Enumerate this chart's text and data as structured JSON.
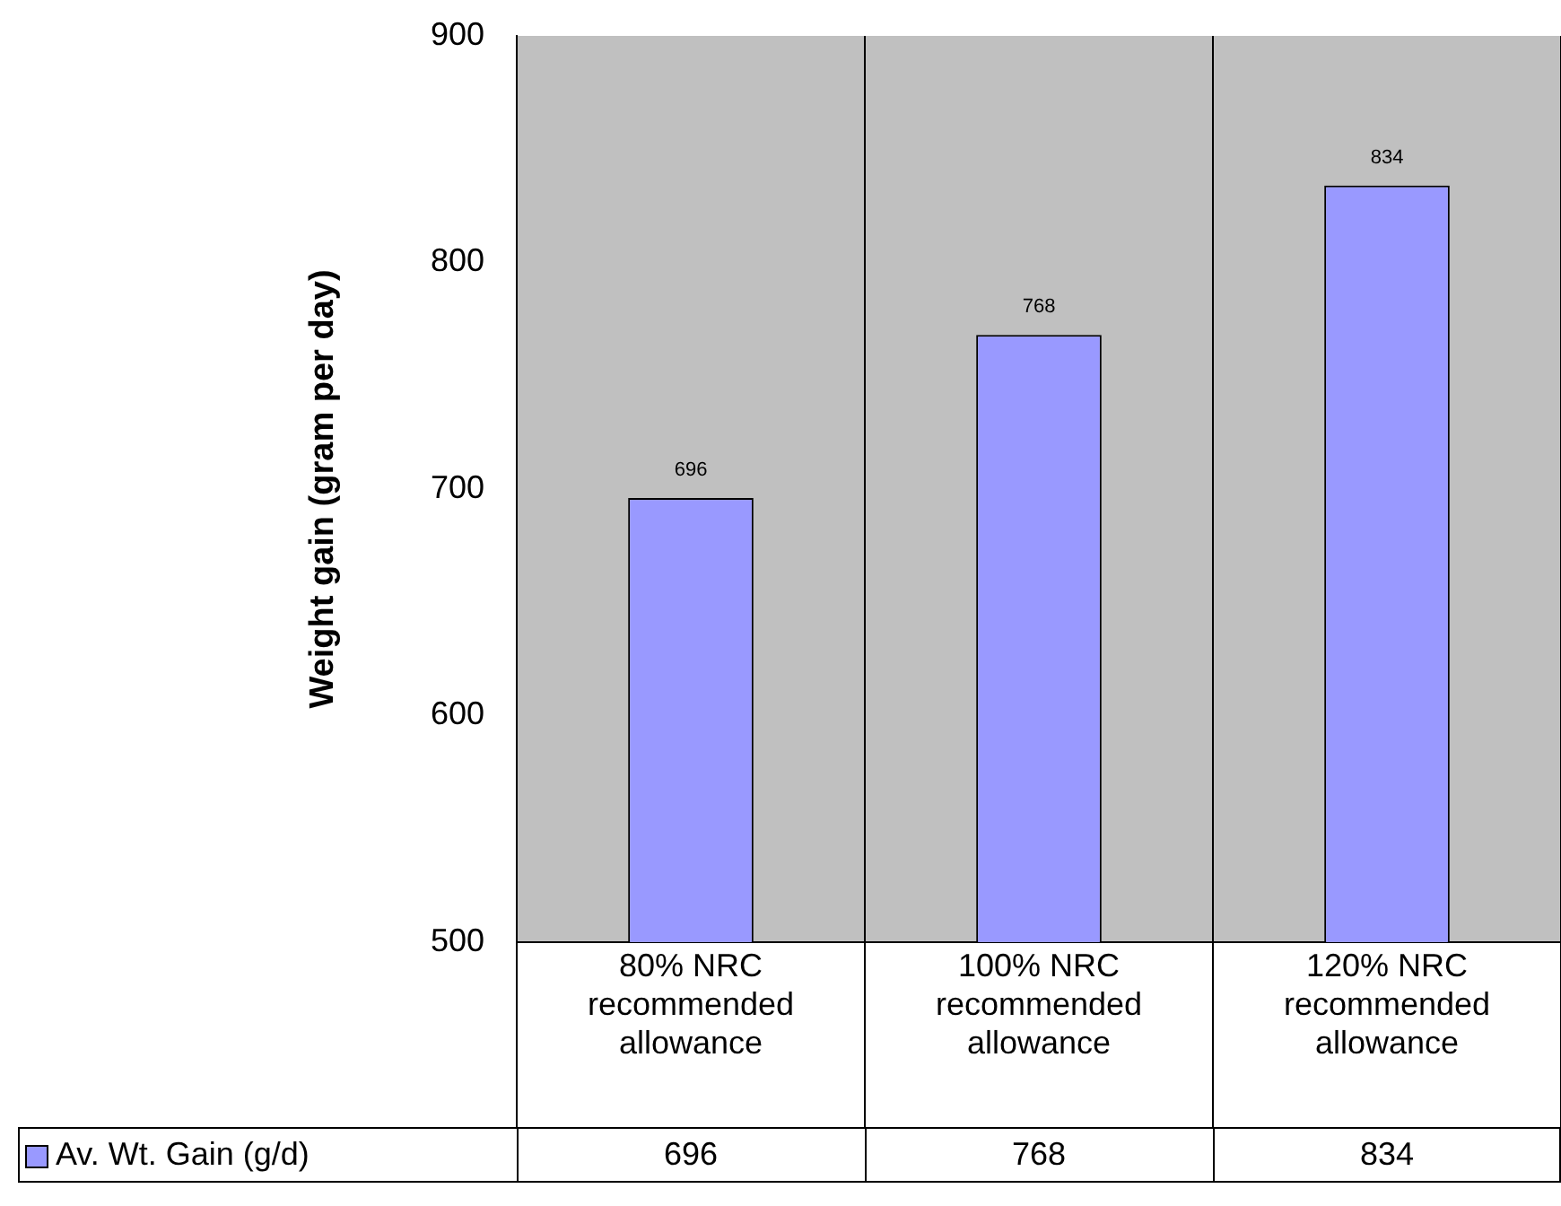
{
  "chart_data": {
    "type": "bar",
    "ylabel": "Weight gain (gram per day)",
    "categories": [
      "80% NRC recommended allowance",
      "100% NRC recommended allowance",
      "120% NRC recommended allowance"
    ],
    "series": [
      {
        "name": "Av. Wt. Gain (g/d)",
        "color": "#9999ff",
        "values": [
          696,
          768,
          834
        ]
      }
    ],
    "annotations": [
      {
        "text": "696",
        "x": "80% NRC recommended allowance",
        "y": 696
      },
      {
        "text": "768",
        "x": "100% NRC recommended allowance",
        "y": 768
      },
      {
        "text": "834",
        "x": "120% NRC recommended allowance",
        "y": 834
      }
    ],
    "ylim": [
      500,
      900
    ],
    "yticks": [
      500,
      600,
      700,
      800,
      900
    ],
    "grid": "x",
    "legend": "bottom",
    "data_labels": true
  }
}
